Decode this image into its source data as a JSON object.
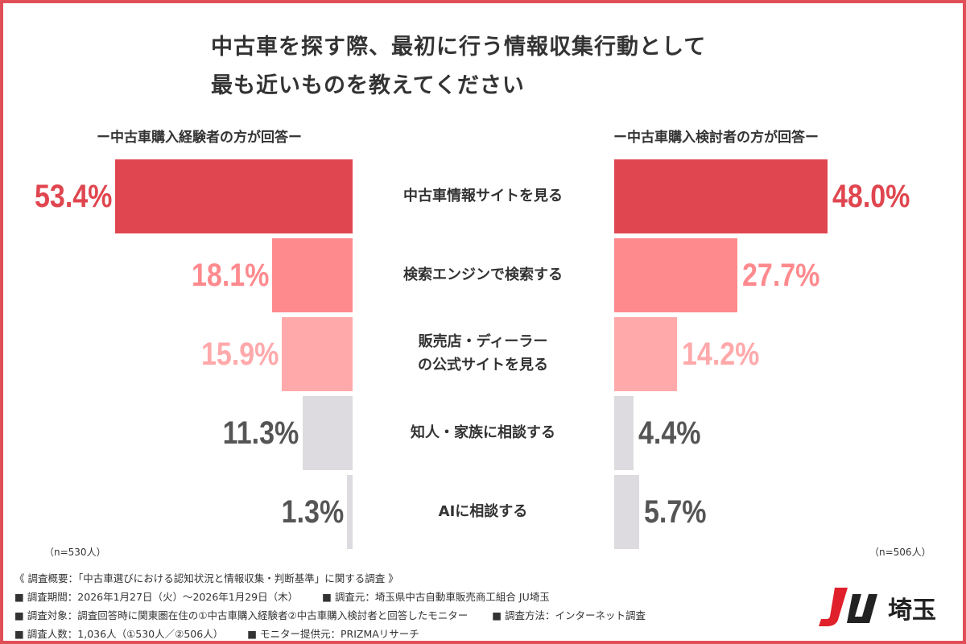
{
  "chart_data": {
    "type": "bar",
    "title": "中古車を探す際、最初に行う情報収集行動として最も近いものを教えてください",
    "title_lines": [
      "中古車を探す際、最初に行う情報収集行動として",
      "最も近いものを教えてください"
    ],
    "categories": [
      "中古車情報サイトを見る",
      "検索エンジンで検索する",
      "販売店・ディーラーの公式サイトを見る",
      "知人・家族に相談する",
      "AIに相談する"
    ],
    "category_lines": [
      [
        "中古車情報サイトを見る"
      ],
      [
        "検索エンジンで検索する"
      ],
      [
        "販売店・ディーラー",
        "の公式サイトを見る"
      ],
      [
        "知人・家族に相談する"
      ],
      [
        "AIに相談する"
      ]
    ],
    "series": [
      {
        "name": "ー中古車購入経験者の方が回答ー",
        "values": [
          53.4,
          18.1,
          15.9,
          11.3,
          1.3
        ],
        "labels": [
          "53.4%",
          "18.1%",
          "15.9%",
          "11.3%",
          "1.3%"
        ],
        "n": "（n=530人）"
      },
      {
        "name": "ー中古車購入検討者の方が回答ー",
        "values": [
          48.0,
          27.7,
          14.2,
          4.4,
          5.7
        ],
        "labels": [
          "48.0%",
          "27.7%",
          "14.2%",
          "4.4%",
          "5.7%"
        ],
        "n": "（n=506人）"
      }
    ],
    "unit": "%",
    "bar_colors": [
      "#e0464f",
      "#ff8a8e",
      "#ffa9ab",
      "#dddbe0",
      "#dddbe0"
    ],
    "label_colors": [
      "#e0464f",
      "#ff8a8e",
      "#ffa9ab",
      "#555555",
      "#555555"
    ]
  },
  "footer": {
    "overview": "《 調査概要：「中古車選びにおける認知状況と情報収集・判断基準」に関する調査 》",
    "lines": [
      [
        "■ 調査期間：2026年1月27日（火）～2026年1月29日（木）",
        "■ 調査元：埼玉県中古自動車販売商工組合 JU埼玉"
      ],
      [
        "■ 調査対象：調査回答時に関東圏在住の①中古車購入経験者②中古車購入検討者と回答したモニター",
        "■ 調査方法：インターネット調査"
      ],
      [
        "■ 調査人数：1,036人（①530人／②506人）",
        "■ モニター提供元：PRIZMAリサーチ"
      ]
    ]
  },
  "logo": {
    "text": "JU埼玉",
    "brand_color": "#e0202a"
  }
}
